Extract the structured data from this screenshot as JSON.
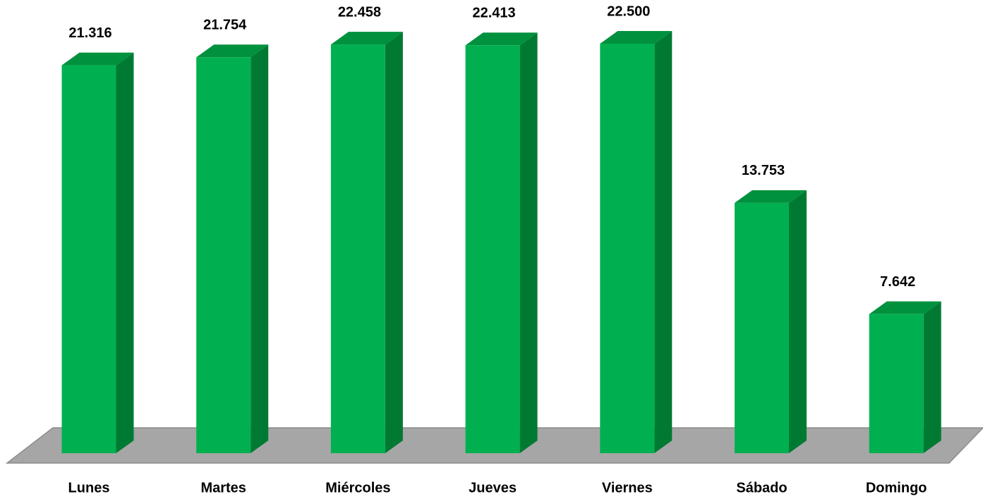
{
  "chart_data": {
    "type": "bar3d",
    "categories": [
      "Lunes",
      "Martes",
      "Miércoles",
      "Jueves",
      "Viernes",
      "Sábado",
      "Domingo"
    ],
    "values": [
      21316,
      21754,
      22458,
      22413,
      22500,
      13753,
      7642
    ],
    "value_labels": [
      "21.316",
      "21.754",
      "22.458",
      "22.413",
      "22.500",
      "13.753",
      "7.642"
    ],
    "color": "#00b050"
  }
}
